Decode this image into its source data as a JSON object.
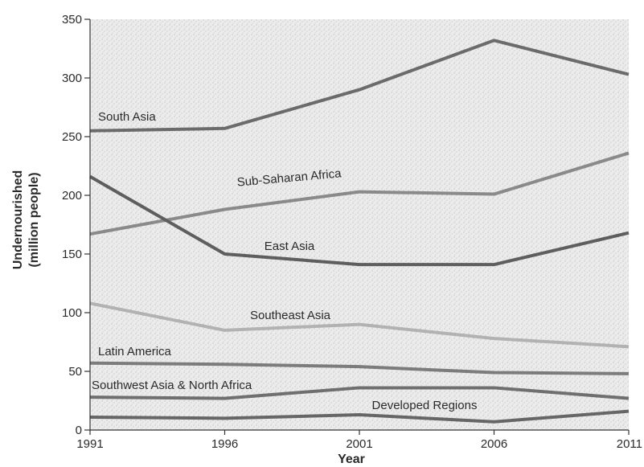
{
  "chart_data": {
    "type": "line",
    "title": "",
    "xlabel": "Year",
    "ylabel": [
      "Undernourished",
      "(million people)"
    ],
    "x": [
      1991,
      1996,
      2001,
      2006,
      2011
    ],
    "xticks": [
      "1991",
      "1996",
      "2001",
      "2006",
      "2011"
    ],
    "yticks": [
      "0",
      "50",
      "100",
      "150",
      "200",
      "250",
      "300",
      "350"
    ],
    "ylim": [
      0,
      350
    ],
    "grid": false,
    "background": "stippled gray",
    "series": [
      {
        "name": "South Asia",
        "values": [
          255,
          257,
          290,
          332,
          303
        ],
        "color": "#6b6b6b"
      },
      {
        "name": "Sub-Saharan Africa",
        "values": [
          167,
          188,
          203,
          201,
          236
        ],
        "color": "#8a8a8a"
      },
      {
        "name": "East Asia",
        "values": [
          216,
          150,
          141,
          141,
          168
        ],
        "color": "#5e5e5e"
      },
      {
        "name": "Southeast Asia",
        "values": [
          108,
          85,
          90,
          78,
          71
        ],
        "color": "#b2b2b2"
      },
      {
        "name": "Latin America",
        "values": [
          57,
          56,
          54,
          49,
          48
        ],
        "color": "#7c7c7c"
      },
      {
        "name": "Southwest Asia & North Africa",
        "values": [
          28,
          27,
          36,
          36,
          27
        ],
        "color": "#6f6f6f"
      },
      {
        "name": "Developed Regions",
        "values": [
          11,
          10,
          13,
          7,
          16
        ],
        "color": "#666666"
      }
    ]
  }
}
